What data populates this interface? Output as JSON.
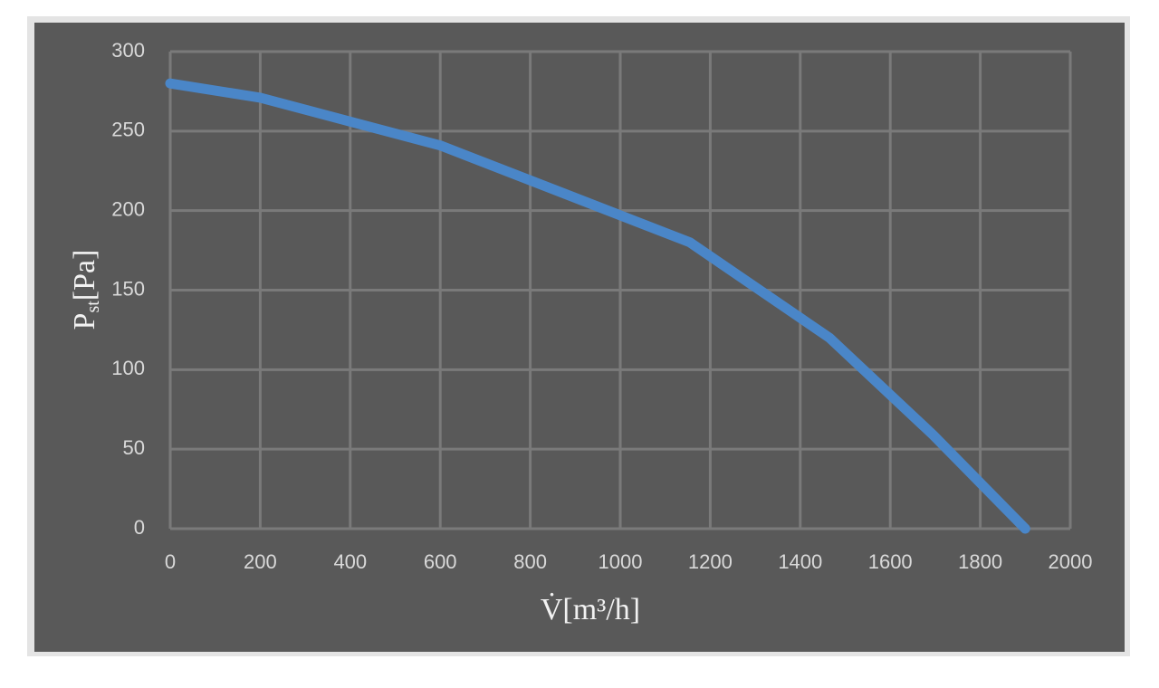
{
  "chart_data": {
    "type": "line",
    "x_label": "V̇[m³/h]",
    "y_label": {
      "symbol": "P",
      "subscript": "st",
      "unit": "[Pa]"
    },
    "x": [
      0,
      200,
      600,
      1155,
      1465,
      1695,
      1900
    ],
    "series": [
      {
        "color": "#4a86c8",
        "values": [
          280,
          271,
          241,
          180,
          120,
          59,
          0
        ]
      }
    ],
    "xlim": [
      0,
      2000
    ],
    "xticks": [
      0,
      200,
      400,
      600,
      800,
      1000,
      1200,
      1400,
      1600,
      1800,
      2000
    ],
    "ylim": [
      0,
      300
    ],
    "yticks": [
      0,
      50,
      100,
      150,
      200,
      250,
      300
    ],
    "grid": true
  }
}
